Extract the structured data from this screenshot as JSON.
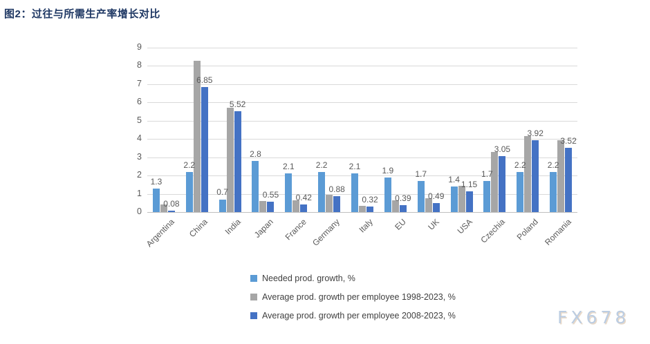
{
  "page": {
    "title": "图2：过往与所需生产率增长对比",
    "watermark": "FX678"
  },
  "chart_data": {
    "type": "bar",
    "title": "图2：过往与所需生产率增长对比",
    "categories": [
      "Argentina",
      "China",
      "India",
      "Japan",
      "France",
      "Germany",
      "Italy",
      "EU",
      "UK",
      "USA",
      "Czechia",
      "Poland",
      "Romania"
    ],
    "series": [
      {
        "name": "Needed prod. growth, %",
        "color": "#5B9BD5",
        "values": [
          1.3,
          2.2,
          0.7,
          2.8,
          2.1,
          2.2,
          2.1,
          1.9,
          1.7,
          1.4,
          1.7,
          2.2,
          2.2
        ],
        "data_labels": true
      },
      {
        "name": "Average prod. growth per employee 1998-2023, %",
        "color": "#A6A6A6",
        "values": [
          0.4,
          8.3,
          5.7,
          0.62,
          0.65,
          0.95,
          0.35,
          0.63,
          0.77,
          1.45,
          3.3,
          4.15,
          3.95
        ],
        "data_labels": false
      },
      {
        "name": "Average prod. growth per employee 2008-2023, %",
        "color": "#4472C4",
        "values": [
          0.08,
          6.85,
          5.52,
          0.55,
          0.42,
          0.88,
          0.32,
          0.39,
          0.49,
          1.15,
          3.05,
          3.92,
          3.52
        ],
        "data_labels": true
      }
    ],
    "ylim": [
      0,
      9
    ],
    "ytick_step": 1,
    "grid": true,
    "legend_position": "bottom-left",
    "xlabel": "",
    "ylabel": ""
  }
}
